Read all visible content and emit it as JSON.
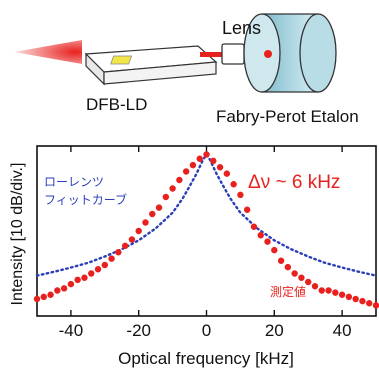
{
  "schematic": {
    "lens_label": "Lens",
    "laser_label": "DFB-LD",
    "etalon_label": "Fabry-Perot Etalon",
    "beam_color": "#e8211e",
    "etalon_color": "#cfe8ee"
  },
  "chart_data": {
    "type": "scatter",
    "xlabel": "Optical frequency [kHz]",
    "ylabel": "Intensity [10 dB/div.]",
    "xlim": [
      -50,
      50
    ],
    "ylim": [
      -38,
      2
    ],
    "xticks": [
      -40,
      -20,
      0,
      20,
      40
    ],
    "xtick_labels": [
      "-40",
      "-20",
      "0",
      "20",
      "40"
    ],
    "grid": false,
    "annotations": {
      "linewidth": "Δν ~ 6 kHz",
      "fit_line1": "ローレンツ",
      "fit_line2": "フィットカーブ",
      "measured": "測定値"
    },
    "series": [
      {
        "name": "測定値",
        "style": "points",
        "color": "#e8211e",
        "x": [
          -50,
          -48,
          -46,
          -44,
          -42,
          -40,
          -38,
          -36,
          -34,
          -32,
          -30,
          -28,
          -26,
          -24,
          -22,
          -20,
          -18,
          -16,
          -14,
          -12,
          -10,
          -8,
          -6,
          -4,
          -2,
          0,
          2,
          4,
          6,
          8,
          10,
          12,
          14,
          16,
          18,
          20,
          22,
          24,
          26,
          28,
          30,
          32,
          34,
          36,
          38,
          40,
          42,
          44,
          46,
          48,
          50
        ],
        "y": [
          -34,
          -33.5,
          -33,
          -32,
          -31.5,
          -30.5,
          -29.5,
          -29,
          -28,
          -27,
          -26,
          -24.5,
          -23,
          -21.5,
          -20,
          -18,
          -16,
          -14,
          -12.5,
          -10,
          -8,
          -6,
          -4,
          -2.5,
          -1,
          0,
          -1.5,
          -3,
          -4.5,
          -7,
          -9.5,
          -13,
          -17,
          -19,
          -20.5,
          -22.5,
          -25,
          -26.5,
          -28,
          -29,
          -30,
          -31,
          -32,
          -32,
          -32.5,
          -33,
          -33.5,
          -34,
          -34.5,
          -35,
          -35.5
        ]
      },
      {
        "name": "ローレンツ フィットカーブ",
        "style": "dotted-line",
        "color": "#2b3fb8",
        "x": [
          -50,
          -45,
          -40,
          -35,
          -30,
          -25,
          -20,
          -15,
          -10,
          -7,
          -5,
          -3,
          -1,
          0,
          1,
          3,
          5,
          7,
          10,
          15,
          20,
          25,
          30,
          35,
          40,
          45,
          50
        ],
        "y": [
          -28.5,
          -27.6,
          -26.6,
          -25.5,
          -24,
          -22.3,
          -20.2,
          -17.4,
          -13.7,
          -10.3,
          -7.5,
          -4.6,
          -1.2,
          0,
          -1.2,
          -4.6,
          -7.5,
          -10.3,
          -13.7,
          -17.4,
          -20.2,
          -22.3,
          -24,
          -25.5,
          -26.6,
          -27.6,
          -28.5
        ]
      }
    ]
  }
}
